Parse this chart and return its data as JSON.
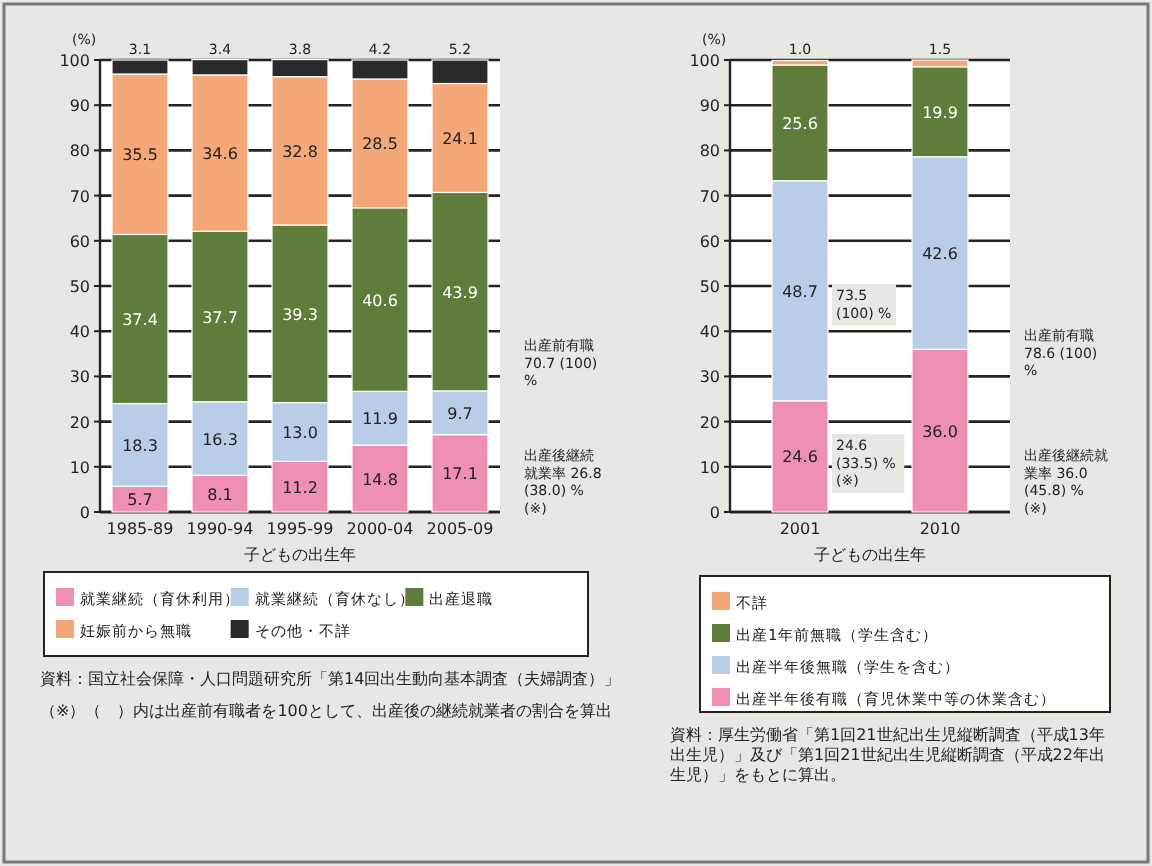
{
  "chart_data": [
    {
      "type": "bar",
      "stacked": true,
      "categories": [
        "1985-89",
        "1990-94",
        "1995-99",
        "2000-04",
        "2005-09"
      ],
      "xlabel": "子どもの出生年",
      "ylabel": "(%)",
      "ylim": [
        0,
        100
      ],
      "yticks": [
        0,
        10,
        20,
        30,
        40,
        50,
        60,
        70,
        80,
        90,
        100
      ],
      "grid": "y",
      "legend": "bottom",
      "series": [
        {
          "name": "就業継続（育休利用）",
          "color": "#ef8fb4",
          "values": [
            5.7,
            8.1,
            11.2,
            14.8,
            17.1
          ],
          "value_labels": [
            "5.7",
            "8.1",
            "11.2",
            "14.8",
            "17.1"
          ]
        },
        {
          "name": "就業継続（育休なし）",
          "color": "#b9cde8",
          "values": [
            18.3,
            16.3,
            13.0,
            11.9,
            9.7
          ],
          "value_labels": [
            "18.3",
            "16.3",
            "13.0",
            "11.9",
            "9.7"
          ]
        },
        {
          "name": "出産退職",
          "color": "#5f7d3a",
          "values": [
            37.4,
            37.7,
            39.3,
            40.6,
            43.9
          ],
          "value_labels": [
            "37.4",
            "37.7",
            "39.3",
            "40.6",
            "43.9"
          ]
        },
        {
          "name": "妊娠前から無職",
          "color": "#f4a878",
          "values": [
            35.5,
            34.6,
            32.8,
            28.5,
            24.1
          ],
          "value_labels": [
            "35.5",
            "34.6",
            "32.8",
            "28.5",
            "24.1"
          ]
        },
        {
          "name": "その他・不詳",
          "color": "#2a2a2a",
          "values": [
            3.1,
            3.4,
            3.8,
            4.2,
            5.2
          ],
          "value_labels": [
            "3.1",
            "3.4",
            "3.8",
            "4.2",
            "5.2"
          ]
        }
      ],
      "annotations": [
        "出産前有職 70.7 (100) %",
        "出産後継続就業率 26.8 (38.0) % (※)",
        "資料：国立社会保障・人口問題研究所「第14回出生動向基本調査（夫婦調査）」",
        "（※）（　）内は出産前有職者を100として、出産後の継続就業者の割合を算出"
      ]
    },
    {
      "type": "bar",
      "stacked": true,
      "categories": [
        "2001",
        "2010"
      ],
      "xlabel": "子どもの出生年",
      "ylabel": "(%)",
      "ylim": [
        0,
        100
      ],
      "yticks": [
        0,
        10,
        20,
        30,
        40,
        50,
        60,
        70,
        80,
        90,
        100
      ],
      "grid": "y",
      "legend": "bottom",
      "series": [
        {
          "name": "出産半年後有職（育児休業中等の休業含む）",
          "color": "#ef8fb4",
          "values": [
            24.6,
            36.0
          ],
          "value_labels": [
            "24.6",
            "36.0"
          ]
        },
        {
          "name": "出産半年後無職（学生を含む）",
          "color": "#b9cde8",
          "values": [
            48.7,
            42.6
          ],
          "value_labels": [
            "48.7",
            "42.6"
          ]
        },
        {
          "name": "出産1年前無職（学生含む）",
          "color": "#5f7d3a",
          "values": [
            25.6,
            19.9
          ],
          "value_labels": [
            "25.6",
            "19.9"
          ]
        },
        {
          "name": "不詳",
          "color": "#f4a878",
          "values": [
            1.0,
            1.5
          ],
          "value_labels": [
            "1.0",
            "1.5"
          ]
        }
      ],
      "annotations": [
        "73.5 (100) %",
        "24.6 (33.5) % (※)",
        "出産前有職 78.6 (100) %",
        "出産後継続就業率 36.0 (45.8) % (※)",
        "資料：厚生労働省「第1回21世紀出生児縦断調査（平成13年出生児）」及び「第1回21世紀出生児縦断調査（平成22年出生児）」をもとに算出。"
      ]
    }
  ]
}
